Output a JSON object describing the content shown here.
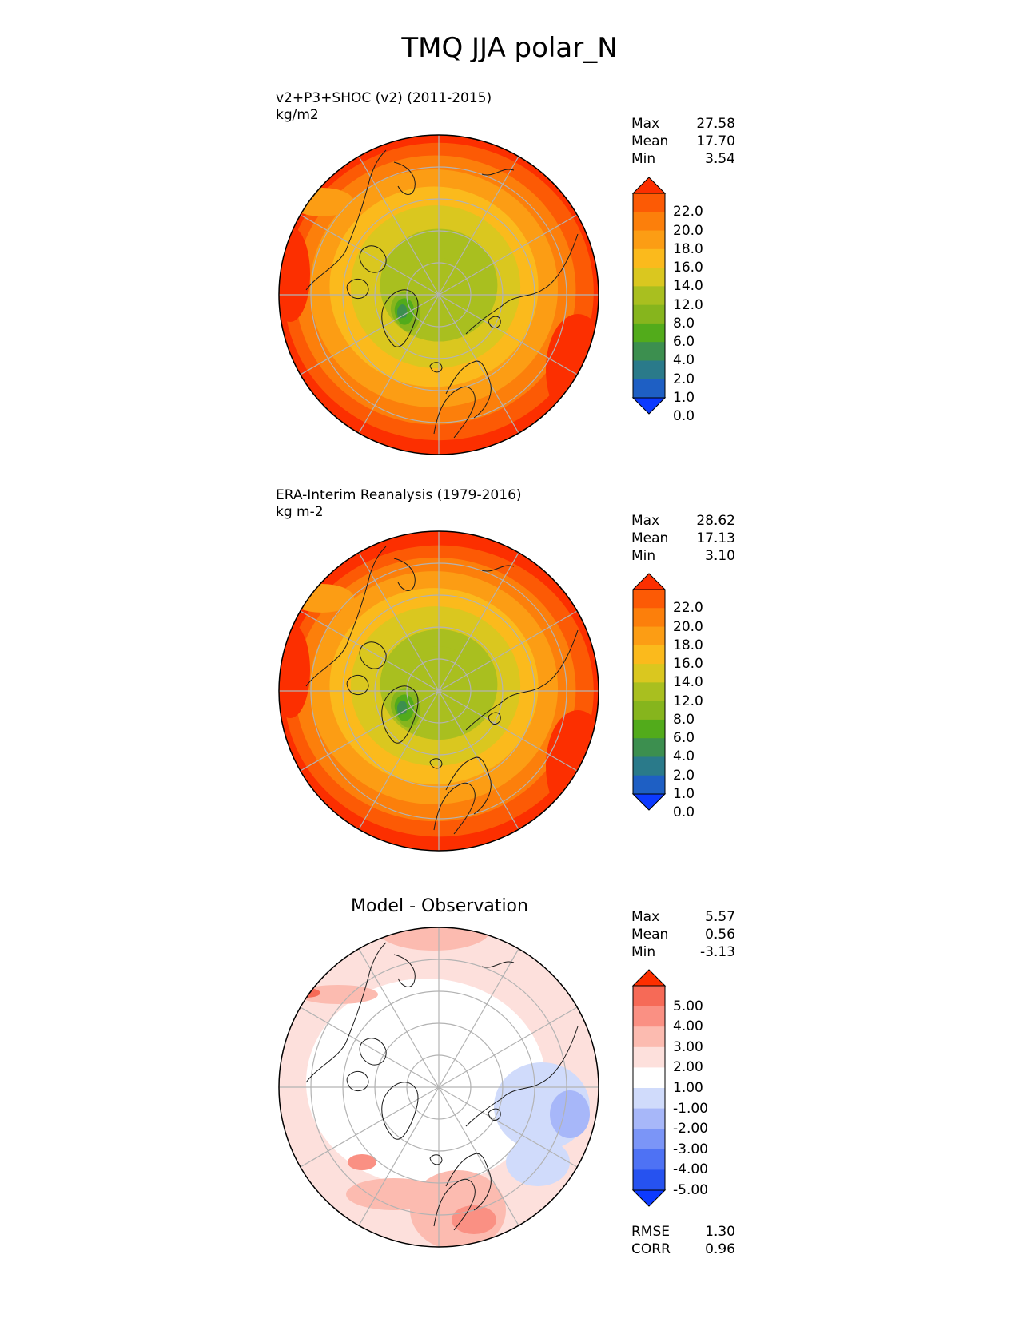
{
  "title": "TMQ JJA polar_N",
  "colors": {
    "sequential": [
      "#0c3aff",
      "#1e5fc4",
      "#2a7a8a",
      "#3c8f4f",
      "#52ab1b",
      "#86b51d",
      "#a9bf1f",
      "#dac71f",
      "#fbba1c",
      "#fc9d14",
      "#fc7f0b",
      "#fc5a05",
      "#fc2f00"
    ],
    "diverging": [
      "#0c3aff",
      "#2652f0",
      "#4e72f4",
      "#7b95f7",
      "#a7b7f9",
      "#d0dbfb",
      "#ffffff",
      "#fde0dc",
      "#fcbbb0",
      "#fa9083",
      "#f66a57",
      "#fc2f00"
    ],
    "grid": "#b3b3b3",
    "coast": "#1a1a1a"
  },
  "panels": [
    {
      "id": "test",
      "title_line1": "v2+P3+SHOC (v2) (2011-2015)",
      "title_line2": "kg/m2",
      "stats": [
        {
          "label": "Max",
          "value": "27.58"
        },
        {
          "label": "Mean",
          "value": "17.70"
        },
        {
          "label": "Min",
          "value": "3.54"
        }
      ],
      "colorbar_ticks": [
        "22.0",
        "20.0",
        "18.0",
        "16.0",
        "14.0",
        "12.0",
        "8.0",
        "6.0",
        "4.0",
        "2.0",
        "1.0",
        "0.0"
      ]
    },
    {
      "id": "reference",
      "title_line1": "ERA-Interim Reanalysis (1979-2016)",
      "title_line2": "kg m-2",
      "stats": [
        {
          "label": "Max",
          "value": "28.62"
        },
        {
          "label": "Mean",
          "value": "17.13"
        },
        {
          "label": "Min",
          "value": "3.10"
        }
      ],
      "colorbar_ticks": [
        "22.0",
        "20.0",
        "18.0",
        "16.0",
        "14.0",
        "12.0",
        "8.0",
        "6.0",
        "4.0",
        "2.0",
        "1.0",
        "0.0"
      ]
    },
    {
      "id": "difference",
      "title": "Model - Observation",
      "stats": [
        {
          "label": "Max",
          "value": "5.57"
        },
        {
          "label": "Mean",
          "value": "0.56"
        },
        {
          "label": "Min",
          "value": "-3.13"
        }
      ],
      "colorbar_ticks": [
        "5.00",
        "4.00",
        "3.00",
        "2.00",
        "1.00",
        "-1.00",
        "-2.00",
        "-3.00",
        "-4.00",
        "-5.00"
      ],
      "metrics": [
        {
          "label": "RMSE",
          "value": "1.30"
        },
        {
          "label": "CORR",
          "value": "0.96"
        }
      ]
    }
  ],
  "chart_data": [
    {
      "type": "heatmap",
      "title": "v2+P3+SHOC (v2) (2011-2015)",
      "units": "kg/m2",
      "projection": "north polar stereographic",
      "levels": [
        0,
        1,
        2,
        4,
        6,
        8,
        12,
        14,
        16,
        18,
        20,
        22
      ],
      "colorbar_extend": "both",
      "max": 27.58,
      "mean": 17.7,
      "min": 3.54
    },
    {
      "type": "heatmap",
      "title": "ERA-Interim Reanalysis (1979-2016)",
      "units": "kg m-2",
      "projection": "north polar stereographic",
      "levels": [
        0,
        1,
        2,
        4,
        6,
        8,
        12,
        14,
        16,
        18,
        20,
        22
      ],
      "colorbar_extend": "both",
      "max": 28.62,
      "mean": 17.13,
      "min": 3.1
    },
    {
      "type": "heatmap",
      "title": "Model - Observation",
      "projection": "north polar stereographic",
      "levels": [
        -5,
        -4,
        -3,
        -2,
        -1,
        1,
        2,
        3,
        4,
        5
      ],
      "colorbar_extend": "both",
      "max": 5.57,
      "mean": 0.56,
      "min": -3.13,
      "rmse": 1.3,
      "corr": 0.96
    }
  ]
}
